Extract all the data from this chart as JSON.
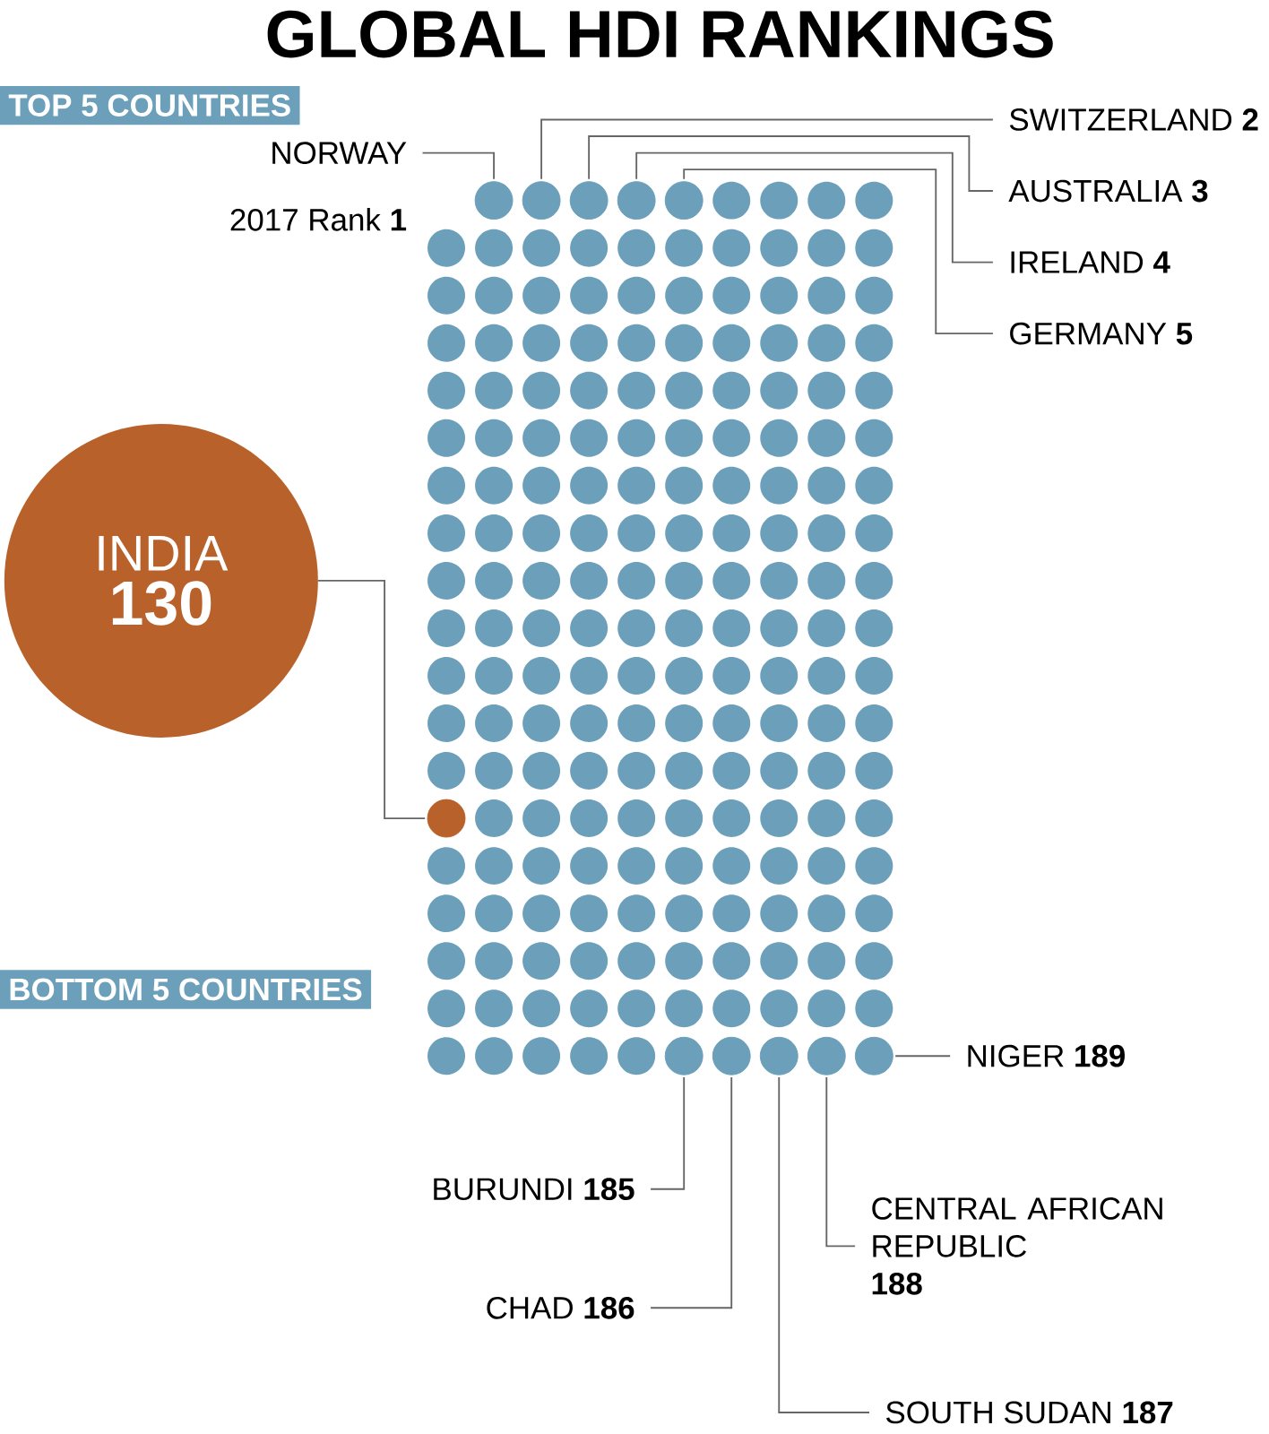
{
  "chart_data": {
    "type": "other",
    "title": "GLOBAL HDI RANKINGS",
    "categories": [
      "NORWAY",
      "SWITZERLAND",
      "AUSTRALIA",
      "IRELAND",
      "GERMANY",
      "INDIA",
      "BURUNDI",
      "CHAD",
      "SOUTH SUDAN",
      "CENTRAL AFRICAN REPUBLIC",
      "NIGER"
    ],
    "values": [
      1,
      2,
      3,
      4,
      5,
      130,
      185,
      186,
      187,
      188,
      189
    ],
    "color": "#6b9fba",
    "colors": [
      "#6b9fba",
      "#6b9fba",
      "#6b9fba",
      "#6b9fba",
      "#6b9fba",
      "#b8612a",
      "#6b9fba",
      "#6b9fba",
      "#6b9fba",
      "#6b9fba",
      "#6b9fba"
    ],
    "annotations": [
      "TOP 5 COUNTRIES",
      "2017 Rank",
      "BOTTOM 5 COUNTRIES"
    ],
    "data_labels": true
  }
}
